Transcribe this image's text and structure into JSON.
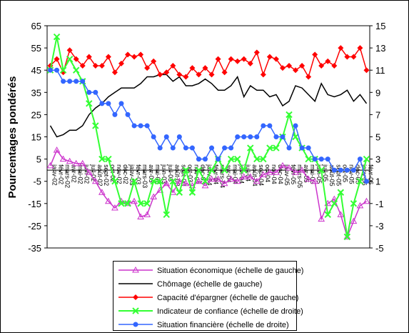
{
  "chart_data": {
    "type": "line",
    "ylabel": "Pourcentages pondérés",
    "categories": [
      "janv-02",
      "févr-02",
      "mars-02",
      "avr-02",
      "mai-02",
      "juin-02",
      "juil-02",
      "août-02",
      "sept-02",
      "oct-02",
      "nov-02",
      "déc-02",
      "janv-03",
      "févr-03",
      "mars-03",
      "avr-03",
      "mai-03",
      "juin-03",
      "juil-03",
      "août-03",
      "sept-03",
      "oct-03",
      "nov-03",
      "déc-03",
      "janv-04",
      "févr-04",
      "mars-04",
      "avr-04",
      "mai-04",
      "juin-04",
      "juil-04",
      "août-04",
      "sept-04",
      "oct-04",
      "nov-04",
      "déc-04",
      "janv-05",
      "févr-05",
      "mars-05",
      "avr-05",
      "mai-05",
      "juin-05",
      "juil-05",
      "août-05",
      "sept-05",
      "oct-05",
      "nov-05",
      "déc-05",
      "janv-06",
      "févr-06"
    ],
    "ylim": [
      -35,
      65
    ],
    "yticks": [
      -35,
      -25,
      -15,
      -5,
      5,
      15,
      25,
      35,
      45,
      55,
      65
    ],
    "y2lim": [
      -5,
      15
    ],
    "y2ticks": [
      -5,
      -3,
      -1,
      1,
      3,
      5,
      7,
      9,
      11,
      13,
      15
    ],
    "series": [
      {
        "name": "Situation économique (échelle de gauche)",
        "color": "#cc33cc",
        "marker": "triangle",
        "values": [
          2,
          9,
          5,
          4,
          3,
          3,
          -1,
          -5,
          -10,
          -14,
          -17,
          -14,
          -15,
          -14,
          -21,
          -20,
          -12,
          -9,
          -6,
          -10,
          -5,
          -6,
          -7,
          -5,
          -7,
          -4,
          -4,
          -6,
          -4,
          -5,
          -3,
          -3,
          -5,
          -2,
          -1,
          -1,
          2,
          1,
          -1,
          0,
          -4,
          -5,
          -22,
          -15,
          -13,
          -20,
          -30,
          -23,
          -16,
          -14
        ]
      },
      {
        "name": "Chômage (échelle de gauche)",
        "color": "#000000",
        "marker": "none",
        "values": [
          20,
          15,
          16,
          18,
          18,
          20,
          25,
          28,
          30,
          33,
          35,
          37,
          37,
          37,
          39,
          42,
          42,
          43,
          43,
          40,
          42,
          38,
          38,
          39,
          41,
          39,
          36,
          36,
          38,
          42,
          33,
          38,
          36,
          36,
          33,
          34,
          29,
          31,
          38,
          37,
          34,
          31,
          39,
          34,
          33,
          34,
          36,
          31,
          34,
          30
        ]
      },
      {
        "name": "Capacité d'épargner (échelle de gauche)",
        "color": "#ff0000",
        "marker": "diamond",
        "values": [
          47,
          50,
          44,
          54,
          50,
          47,
          51,
          47,
          47,
          51,
          44,
          48,
          52,
          51,
          52,
          46,
          49,
          43,
          44,
          47,
          43,
          42,
          46,
          43,
          46,
          43,
          50,
          44,
          50,
          49,
          50,
          48,
          53,
          43,
          51,
          50,
          46,
          47,
          45,
          47,
          42,
          52,
          47,
          49,
          47,
          55,
          51,
          51,
          55,
          45
        ]
      },
      {
        "name": "Indicateur de confiance (échelle de droite)",
        "color": "#33ff33",
        "marker": "x",
        "axis": "y2",
        "values": [
          11,
          14,
          11,
          12,
          11,
          10,
          8,
          6,
          3,
          3,
          1,
          -1,
          -1,
          1,
          -1,
          -1,
          1,
          1,
          -2,
          1,
          0,
          2,
          0,
          2,
          1,
          2,
          3,
          2,
          3,
          3,
          2,
          4,
          3,
          3,
          4,
          4,
          5,
          7,
          5,
          4,
          3,
          3,
          2,
          -2,
          -1,
          0,
          -4,
          -1,
          1,
          3
        ]
      },
      {
        "name": "Situation financière (échelle de droite)",
        "color": "#3366ff",
        "marker": "circle",
        "axis": "y2",
        "values": [
          11,
          11,
          10,
          10,
          10,
          10,
          9,
          9,
          8,
          8,
          7,
          8,
          7,
          6,
          6,
          6,
          5,
          4,
          5,
          4,
          5,
          4,
          4,
          3,
          3,
          4,
          3,
          4,
          4,
          5,
          5,
          5,
          5,
          6,
          6,
          5,
          5,
          4,
          6,
          4,
          4,
          3,
          3,
          3,
          2,
          2,
          2,
          2,
          3,
          1
        ]
      }
    ]
  }
}
